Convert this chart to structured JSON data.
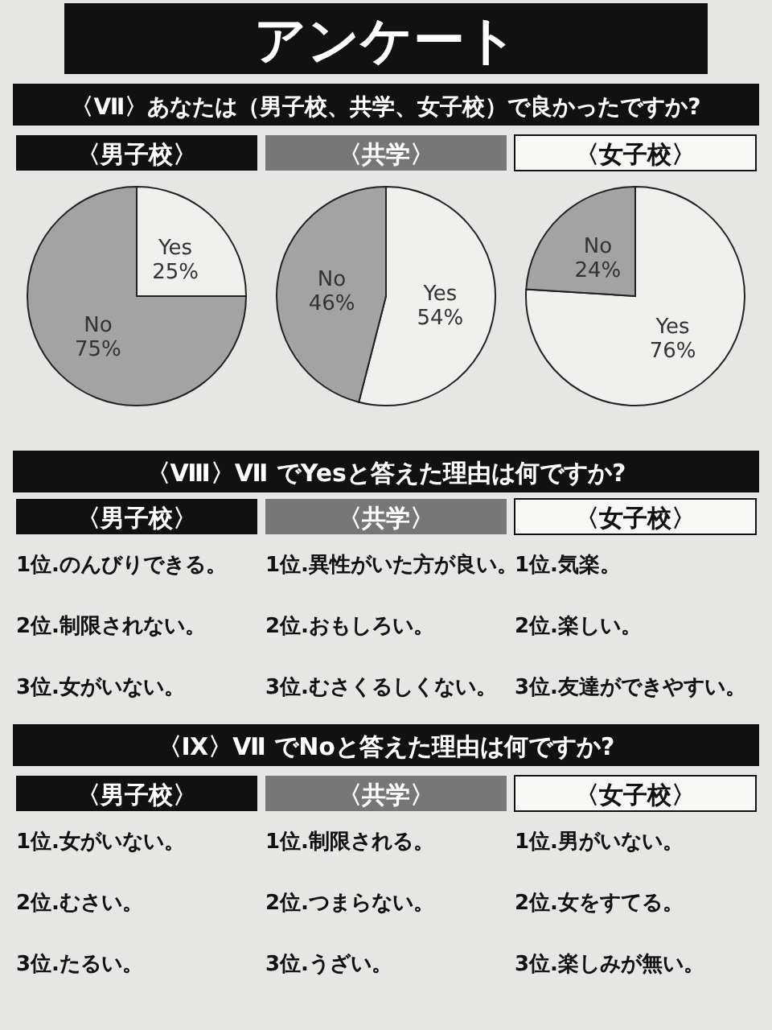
{
  "chart_data": [
    {
      "type": "other",
      "title": "アンケート",
      "subtitle": "〈Ⅶ〉あなたは（男子校、共学、女子校）で良かったですか?"
    },
    {
      "type": "pie",
      "title": "〈男子校〉",
      "categories": [
        "Yes",
        "No"
      ],
      "values": [
        25,
        75
      ],
      "value_labels": [
        "25%",
        "75%"
      ],
      "colors": [
        "#f0f0ee",
        "#a3a3a3"
      ]
    },
    {
      "type": "pie",
      "title": "〈共学〉",
      "categories": [
        "Yes",
        "No"
      ],
      "values": [
        54,
        46
      ],
      "value_labels": [
        "54%",
        "46%"
      ],
      "colors": [
        "#f0f0ee",
        "#a3a3a3"
      ]
    },
    {
      "type": "pie",
      "title": "〈女子校〉",
      "categories": [
        "Yes",
        "No"
      ],
      "values": [
        76,
        24
      ],
      "value_labels": [
        "76%",
        "24%"
      ],
      "colors": [
        "#f0f0ee",
        "#a3a3a3"
      ]
    },
    {
      "type": "other",
      "title": "〈Ⅷ〉Ⅶ でYesと答えた理由は何ですか?"
    },
    {
      "type": "other",
      "title": "〈男子校〉",
      "annotations": [
        "1位.のんびりできる。",
        "2位.制限されない。",
        "3位.女がいない。"
      ]
    },
    {
      "type": "other",
      "title": "〈共学〉",
      "annotations": [
        "1位.異性がいた方が良い。",
        "2位.おもしろい。",
        "3位.むさくるしくない。"
      ]
    },
    {
      "type": "other",
      "title": "〈女子校〉",
      "annotations": [
        "1位.気楽。",
        "2位.楽しい。",
        "3位.友達ができやすい。"
      ]
    },
    {
      "type": "other",
      "title": "〈Ⅸ〉Ⅶ でNoと答えた理由は何ですか?"
    },
    {
      "type": "other",
      "title": "〈男子校〉",
      "annotations": [
        "1位.女がいない。",
        "2位.むさい。",
        "3位.たるい。"
      ]
    },
    {
      "type": "other",
      "title": "〈共学〉",
      "annotations": [
        "1位.制限される。",
        "2位.つまらない。",
        "3位.うざい。"
      ]
    },
    {
      "type": "other",
      "title": "〈女子校〉",
      "annotations": [
        "1位.男がいない。",
        "2位.女をすてる。",
        "3位.楽しみが無い。"
      ]
    }
  ]
}
